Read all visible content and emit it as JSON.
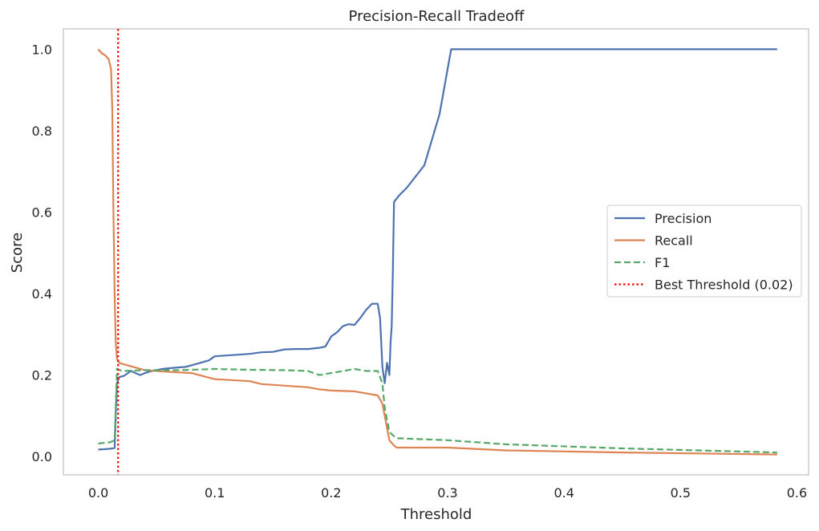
{
  "chart_data": {
    "type": "line",
    "title": "Precision-Recall Tradeoff",
    "xlabel": "Threshold",
    "ylabel": "Score",
    "xlim": [
      -0.03,
      0.61
    ],
    "ylim": [
      -0.045,
      1.05
    ],
    "xticks": [
      0.0,
      0.1,
      0.2,
      0.3,
      0.4,
      0.5,
      0.6
    ],
    "xtick_labels": [
      "0.0",
      "0.1",
      "0.2",
      "0.3",
      "0.4",
      "0.5",
      "0.6"
    ],
    "yticks": [
      0.0,
      0.2,
      0.4,
      0.6,
      0.8,
      1.0
    ],
    "ytick_labels": [
      "0.0",
      "0.2",
      "0.4",
      "0.6",
      "0.8",
      "1.0"
    ],
    "grid": false,
    "legend_position": "center right",
    "series": [
      {
        "name": "Precision",
        "color": "#4c72b0",
        "style": "solid",
        "x": [
          0.0,
          0.01,
          0.014,
          0.015,
          0.016,
          0.018,
          0.022,
          0.028,
          0.032,
          0.036,
          0.04,
          0.046,
          0.055,
          0.065,
          0.075,
          0.085,
          0.095,
          0.1,
          0.11,
          0.12,
          0.13,
          0.14,
          0.15,
          0.16,
          0.17,
          0.18,
          0.19,
          0.195,
          0.2,
          0.205,
          0.21,
          0.215,
          0.22,
          0.225,
          0.23,
          0.235,
          0.24,
          0.242,
          0.244,
          0.246,
          0.248,
          0.25,
          0.251,
          0.252,
          0.253,
          0.254,
          0.258,
          0.265,
          0.28,
          0.293,
          0.303,
          0.583
        ],
        "y": [
          0.017,
          0.019,
          0.021,
          0.1,
          0.18,
          0.195,
          0.198,
          0.21,
          0.205,
          0.2,
          0.205,
          0.21,
          0.215,
          0.218,
          0.22,
          0.228,
          0.236,
          0.246,
          0.248,
          0.25,
          0.252,
          0.256,
          0.257,
          0.263,
          0.264,
          0.264,
          0.267,
          0.27,
          0.295,
          0.305,
          0.32,
          0.325,
          0.323,
          0.34,
          0.36,
          0.375,
          0.375,
          0.34,
          0.22,
          0.18,
          0.23,
          0.2,
          0.28,
          0.32,
          0.46,
          0.625,
          0.64,
          0.66,
          0.715,
          0.84,
          1.0,
          1.0
        ]
      },
      {
        "name": "Recall",
        "color": "#dd8452",
        "style": "solid",
        "x": [
          0.0,
          0.003,
          0.006,
          0.009,
          0.011,
          0.012,
          0.013,
          0.014,
          0.015,
          0.016,
          0.018,
          0.02,
          0.03,
          0.04,
          0.06,
          0.08,
          0.1,
          0.13,
          0.14,
          0.17,
          0.18,
          0.19,
          0.2,
          0.22,
          0.23,
          0.24,
          0.244,
          0.246,
          0.25,
          0.253,
          0.256,
          0.3,
          0.35,
          0.45,
          0.583
        ],
        "y": [
          1.0,
          0.99,
          0.985,
          0.975,
          0.95,
          0.85,
          0.6,
          0.4,
          0.28,
          0.24,
          0.23,
          0.228,
          0.22,
          0.212,
          0.208,
          0.205,
          0.19,
          0.185,
          0.178,
          0.172,
          0.17,
          0.165,
          0.162,
          0.16,
          0.155,
          0.15,
          0.13,
          0.1,
          0.04,
          0.03,
          0.022,
          0.022,
          0.015,
          0.01,
          0.005
        ]
      },
      {
        "name": "F1",
        "color": "#55a868",
        "style": "dashed",
        "x": [
          0.0,
          0.01,
          0.014,
          0.015,
          0.016,
          0.02,
          0.04,
          0.07,
          0.1,
          0.13,
          0.16,
          0.18,
          0.19,
          0.2,
          0.22,
          0.23,
          0.24,
          0.244,
          0.246,
          0.25,
          0.256,
          0.3,
          0.35,
          0.45,
          0.583
        ],
        "y": [
          0.032,
          0.035,
          0.04,
          0.12,
          0.215,
          0.21,
          0.212,
          0.212,
          0.215,
          0.213,
          0.212,
          0.21,
          0.2,
          0.205,
          0.215,
          0.21,
          0.21,
          0.18,
          0.12,
          0.06,
          0.045,
          0.04,
          0.03,
          0.02,
          0.01
        ]
      },
      {
        "name": "Best Threshold (0.02)",
        "color": "#ff0000",
        "style": "dotted",
        "vline": 0.017
      }
    ]
  }
}
